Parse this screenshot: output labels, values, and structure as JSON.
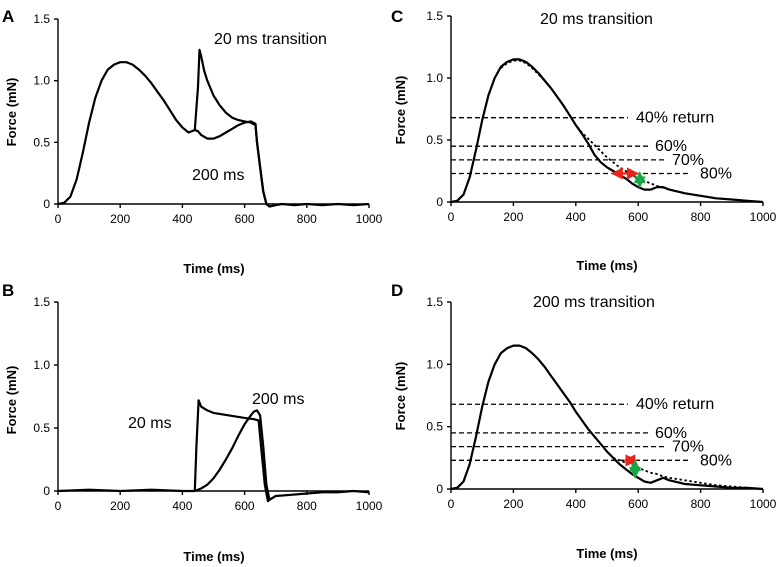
{
  "chart_data": [
    {
      "panel": "A",
      "type": "line",
      "title": "",
      "xlabel": "Time (ms)",
      "ylabel": "Force (mN)",
      "xlim": [
        0,
        1000
      ],
      "ylim": [
        0,
        1.5
      ],
      "xticks": [
        0,
        200,
        400,
        600,
        800,
        1000
      ],
      "yticks": [
        0,
        0.5,
        1.0,
        1.5
      ],
      "ytick_labels": [
        "0",
        "0.5",
        "1.0",
        "1.5"
      ],
      "series": [
        {
          "name": "20 ms transition",
          "x": [
            0,
            20,
            40,
            60,
            80,
            100,
            120,
            140,
            160,
            180,
            200,
            220,
            240,
            260,
            280,
            300,
            320,
            340,
            360,
            380,
            400,
            420,
            440,
            450,
            455,
            460,
            470,
            480,
            500,
            520,
            540,
            560,
            580,
            600,
            620,
            635,
            640,
            650,
            660,
            670,
            680,
            700,
            720,
            760,
            800,
            850,
            900,
            950,
            1000
          ],
          "y": [
            0,
            0.01,
            0.06,
            0.2,
            0.42,
            0.66,
            0.86,
            1.0,
            1.09,
            1.13,
            1.15,
            1.15,
            1.13,
            1.09,
            1.04,
            0.98,
            0.91,
            0.84,
            0.76,
            0.68,
            0.62,
            0.58,
            0.6,
            0.95,
            1.25,
            1.2,
            1.08,
            1.0,
            0.88,
            0.8,
            0.74,
            0.7,
            0.68,
            0.67,
            0.66,
            0.64,
            0.5,
            0.3,
            0.1,
            0.0,
            -0.02,
            -0.01,
            0.0,
            -0.01,
            0.0,
            -0.01,
            0.0,
            -0.01,
            0.0
          ]
        },
        {
          "name": "200 ms",
          "x": [
            440,
            450,
            460,
            480,
            500,
            520,
            540,
            560,
            580,
            600,
            620,
            635,
            640,
            650,
            660,
            670,
            680
          ],
          "y": [
            0.6,
            0.59,
            0.56,
            0.53,
            0.53,
            0.55,
            0.58,
            0.61,
            0.64,
            0.66,
            0.67,
            0.65,
            0.5,
            0.3,
            0.1,
            0.0,
            -0.02
          ]
        }
      ],
      "annotations": [
        "20 ms transition",
        "200 ms"
      ]
    },
    {
      "panel": "B",
      "type": "line",
      "title": "",
      "xlabel": "Time (ms)",
      "ylabel": "Force (mN)",
      "xlim": [
        0,
        1000
      ],
      "ylim": [
        0,
        1.5
      ],
      "xticks": [
        0,
        200,
        400,
        600,
        800,
        1000
      ],
      "yticks": [
        0,
        0.5,
        1.0,
        1.5
      ],
      "ytick_labels": [
        "0",
        "0.5",
        "1.0",
        "1.5"
      ],
      "series": [
        {
          "name": "20 ms",
          "x": [
            0,
            100,
            200,
            300,
            400,
            440,
            445,
            452,
            460,
            480,
            500,
            550,
            600,
            630,
            645,
            655,
            665,
            675,
            680,
            700,
            750,
            800,
            850,
            900,
            950,
            1000
          ],
          "y": [
            0,
            0.01,
            0.0,
            0.01,
            0.0,
            0.0,
            0.35,
            0.72,
            0.67,
            0.64,
            0.62,
            0.6,
            0.58,
            0.57,
            0.56,
            0.3,
            0.05,
            -0.08,
            -0.07,
            -0.04,
            -0.03,
            -0.02,
            -0.01,
            -0.01,
            0.0,
            -0.01
          ]
        },
        {
          "name": "200 ms",
          "x": [
            440,
            460,
            480,
            500,
            520,
            540,
            560,
            580,
            600,
            620,
            630,
            640,
            650,
            660,
            670,
            680
          ],
          "y": [
            0.0,
            0.02,
            0.05,
            0.1,
            0.17,
            0.25,
            0.34,
            0.44,
            0.53,
            0.6,
            0.63,
            0.64,
            0.6,
            0.35,
            0.05,
            -0.07
          ]
        }
      ],
      "annotations": [
        "20 ms",
        "200 ms"
      ]
    },
    {
      "panel": "C",
      "type": "line",
      "title": "20 ms transition",
      "xlabel": "Time (ms)",
      "ylabel": "Force (mN)",
      "xlim": [
        0,
        1000
      ],
      "ylim": [
        0,
        1.5
      ],
      "xticks": [
        0,
        200,
        400,
        600,
        800,
        1000
      ],
      "yticks": [
        0,
        0.5,
        1.0,
        1.5
      ],
      "ytick_labels": [
        "0",
        "0.5",
        "1.0",
        "1.5"
      ],
      "series": [
        {
          "name": "solid",
          "x": [
            0,
            20,
            40,
            60,
            80,
            100,
            120,
            140,
            160,
            180,
            200,
            220,
            240,
            260,
            280,
            300,
            320,
            340,
            360,
            380,
            400,
            420,
            440,
            460,
            480,
            500,
            520,
            540,
            560,
            580,
            600,
            620,
            640,
            660,
            680,
            700,
            750,
            800,
            850,
            900,
            950,
            1000
          ],
          "y": [
            0,
            0.01,
            0.06,
            0.2,
            0.42,
            0.66,
            0.86,
            1.0,
            1.09,
            1.13,
            1.15,
            1.15,
            1.13,
            1.09,
            1.04,
            0.98,
            0.92,
            0.85,
            0.78,
            0.7,
            0.62,
            0.55,
            0.47,
            0.38,
            0.32,
            0.28,
            0.25,
            0.22,
            0.19,
            0.15,
            0.12,
            0.1,
            0.1,
            0.12,
            0.12,
            0.1,
            0.07,
            0.05,
            0.03,
            0.02,
            0.01,
            0.0
          ]
        },
        {
          "name": "dotted",
          "x": [
            160,
            180,
            200,
            220,
            240,
            260,
            280,
            300,
            320,
            340,
            360,
            380,
            400,
            420,
            440,
            460,
            480,
            500,
            520,
            540,
            560,
            580,
            600,
            620,
            640,
            660,
            700,
            750,
            800,
            850,
            900,
            950,
            1000
          ],
          "y": [
            1.08,
            1.12,
            1.14,
            1.14,
            1.12,
            1.08,
            1.03,
            0.98,
            0.92,
            0.85,
            0.78,
            0.7,
            0.62,
            0.56,
            0.51,
            0.46,
            0.41,
            0.36,
            0.32,
            0.28,
            0.25,
            0.22,
            0.19,
            0.17,
            0.15,
            0.13,
            0.1,
            0.07,
            0.05,
            0.03,
            0.02,
            0.01,
            0.0
          ]
        }
      ],
      "reference_lines": [
        {
          "label": "40% return",
          "y": 0.68
        },
        {
          "label": "60%",
          "y": 0.45
        },
        {
          "label": "70%",
          "y": 0.34
        },
        {
          "label": "80%",
          "y": 0.23
        }
      ],
      "arrows": [
        {
          "color": "#e8231d",
          "from": [
            595,
            0.23
          ],
          "to": [
            520,
            0.23
          ]
        },
        {
          "color": "#17a844",
          "from": [
            605,
            0.23
          ],
          "to": [
            605,
            0.13
          ]
        }
      ]
    },
    {
      "panel": "D",
      "type": "line",
      "title": "200 ms transition",
      "xlabel": "Time (ms)",
      "ylabel": "Force (mN)",
      "xlim": [
        0,
        1000
      ],
      "ylim": [
        0,
        1.5
      ],
      "xticks": [
        0,
        200,
        400,
        600,
        800,
        1000
      ],
      "yticks": [
        0,
        0.5,
        1.0,
        1.5
      ],
      "ytick_labels": [
        "0",
        "0.5",
        "1.0",
        "1.5"
      ],
      "series": [
        {
          "name": "solid",
          "x": [
            0,
            20,
            40,
            60,
            80,
            100,
            120,
            140,
            160,
            180,
            200,
            220,
            240,
            260,
            280,
            300,
            320,
            340,
            360,
            380,
            400,
            420,
            440,
            460,
            480,
            500,
            520,
            540,
            560,
            580,
            600,
            620,
            640,
            660,
            680,
            700,
            750,
            800,
            850,
            900,
            950,
            1000
          ],
          "y": [
            0,
            0.01,
            0.06,
            0.2,
            0.42,
            0.66,
            0.86,
            1.0,
            1.09,
            1.13,
            1.15,
            1.15,
            1.13,
            1.09,
            1.04,
            0.98,
            0.91,
            0.84,
            0.77,
            0.7,
            0.62,
            0.55,
            0.48,
            0.42,
            0.36,
            0.3,
            0.25,
            0.2,
            0.16,
            0.12,
            0.09,
            0.06,
            0.05,
            0.07,
            0.09,
            0.07,
            0.04,
            0.03,
            0.02,
            0.01,
            0.01,
            0.0
          ]
        },
        {
          "name": "dotted",
          "x": [
            520,
            540,
            560,
            580,
            600,
            620,
            640,
            660,
            680,
            700,
            750,
            800,
            850,
            900,
            950,
            1000
          ],
          "y": [
            0.25,
            0.23,
            0.21,
            0.19,
            0.17,
            0.15,
            0.13,
            0.12,
            0.1,
            0.09,
            0.07,
            0.05,
            0.03,
            0.02,
            0.01,
            0.0
          ]
        }
      ],
      "reference_lines": [
        {
          "label": "40% return",
          "y": 0.68
        },
        {
          "label": "60%",
          "y": 0.45
        },
        {
          "label": "70%",
          "y": 0.34
        },
        {
          "label": "80%",
          "y": 0.23
        }
      ],
      "arrows": [
        {
          "color": "#e8231d",
          "from": [
            590,
            0.23
          ],
          "to": [
            560,
            0.23
          ]
        },
        {
          "color": "#17a844",
          "from": [
            590,
            0.22
          ],
          "to": [
            590,
            0.1
          ]
        }
      ]
    }
  ]
}
